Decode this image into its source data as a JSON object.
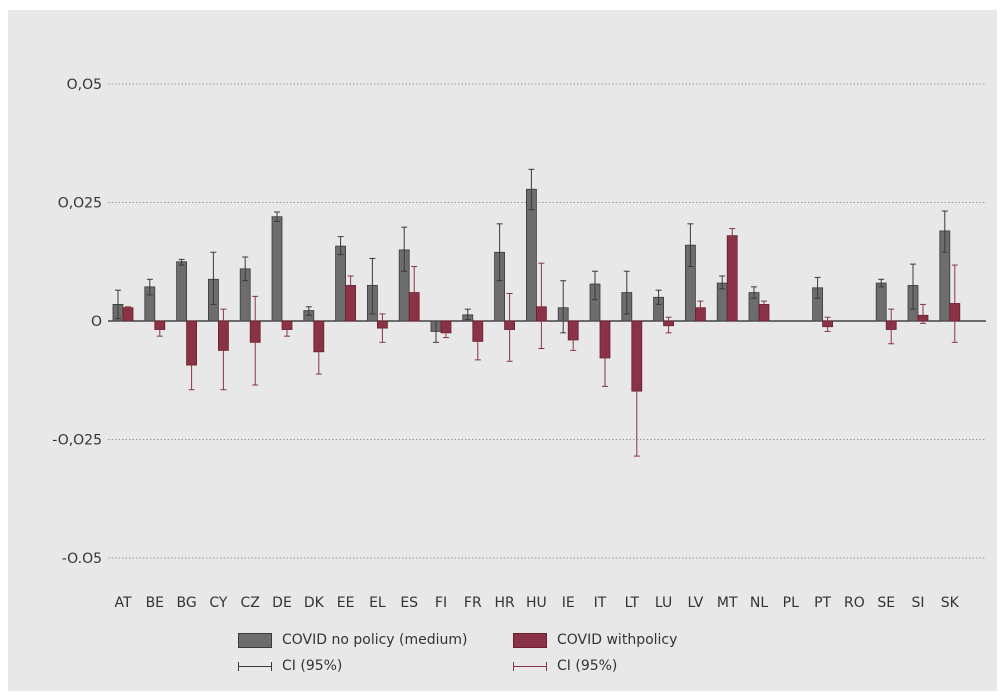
{
  "chart_data": {
    "type": "bar",
    "title": "",
    "xlabel": "",
    "ylabel": "",
    "ylim": [
      -0.055,
      0.06
    ],
    "yticks": [
      {
        "value": 0.05,
        "label": "O,O5"
      },
      {
        "value": 0.025,
        "label": "O,O25"
      },
      {
        "value": 0,
        "label": "O"
      },
      {
        "value": -0.025,
        "label": "-O,O25"
      },
      {
        "value": -0.05,
        "label": "-O.O5"
      }
    ],
    "grid": true,
    "legend_position": "bottom",
    "categories": [
      "AT",
      "BE",
      "BG",
      "CY",
      "CZ",
      "DE",
      "DK",
      "EE",
      "EL",
      "ES",
      "FI",
      "FR",
      "HR",
      "HU",
      "IE",
      "IT",
      "LT",
      "LU",
      "LV",
      "MT",
      "NL",
      "PL",
      "PT",
      "RO",
      "SE",
      "SI",
      "SK"
    ],
    "series": [
      {
        "name": "COVID no policy (medium)",
        "color": "#6d6d6d",
        "values": [
          0.0035,
          0.0072,
          0.0125,
          0.0088,
          0.011,
          0.022,
          0.0022,
          0.0158,
          0.0075,
          0.015,
          -0.0022,
          0.0013,
          0.0145,
          0.0278,
          0.0028,
          0.0078,
          0.006,
          0.005,
          0.016,
          0.008,
          0.006,
          null,
          0.007,
          null,
          0.008,
          0.0075,
          0.019
        ],
        "ci_lower": [
          0.0005,
          0.0055,
          0.0118,
          0.0035,
          0.0085,
          0.021,
          0.0012,
          0.014,
          0.0015,
          0.0105,
          -0.0045,
          0.0003,
          0.0085,
          0.0235,
          -0.0025,
          0.0045,
          0.0015,
          0.0035,
          0.0115,
          0.0068,
          0.0048,
          null,
          0.0048,
          null,
          0.0072,
          0.0025,
          0.0145
        ],
        "ci_upper": [
          0.0065,
          0.0088,
          0.013,
          0.0145,
          0.0135,
          0.023,
          0.003,
          0.0178,
          0.0132,
          0.0198,
          0.0,
          0.0025,
          0.0205,
          0.032,
          0.0085,
          0.0105,
          0.0105,
          0.0065,
          0.0205,
          0.0095,
          0.0072,
          null,
          0.0092,
          null,
          0.0088,
          0.012,
          0.0232
        ]
      },
      {
        "name": "COVID withpolicy",
        "color": "#8a3346",
        "values": [
          0.0028,
          -0.0018,
          -0.0093,
          -0.0062,
          -0.0045,
          -0.0018,
          -0.0065,
          0.0075,
          -0.0015,
          0.006,
          -0.0025,
          -0.0043,
          -0.0018,
          0.003,
          -0.004,
          -0.0078,
          -0.0148,
          -0.001,
          0.0028,
          0.018,
          0.0035,
          null,
          -0.0012,
          null,
          -0.0018,
          0.0012,
          0.0037
        ],
        "ci_lower": [
          0.0025,
          -0.0032,
          -0.0145,
          -0.0145,
          -0.0135,
          -0.0032,
          -0.0112,
          0.0055,
          -0.0045,
          0.0005,
          -0.0035,
          -0.0082,
          -0.0085,
          -0.0058,
          -0.0062,
          -0.0138,
          -0.0285,
          -0.0025,
          0.0015,
          0.0165,
          0.0028,
          null,
          -0.0022,
          null,
          -0.0048,
          -0.0005,
          -0.0045
        ],
        "ci_upper": [
          0.003,
          -0.0005,
          -0.0038,
          0.0025,
          0.0052,
          -0.0005,
          -0.0018,
          0.0095,
          0.0015,
          0.0115,
          -0.0015,
          -0.0005,
          0.0058,
          0.0122,
          -0.0015,
          -0.0018,
          -0.001,
          0.0008,
          0.0042,
          0.0195,
          0.0042,
          null,
          0.0008,
          null,
          0.0025,
          0.0035,
          0.0118
        ]
      }
    ],
    "ci_legend": [
      {
        "label": "CI (95%)",
        "color": "#3a3a3a"
      },
      {
        "label": "CI (95%)",
        "color": "#8a3346"
      }
    ]
  }
}
